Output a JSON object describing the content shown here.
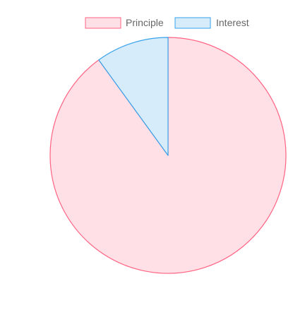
{
  "chart_data": {
    "type": "pie",
    "categories": [
      "Principle",
      "Interest"
    ],
    "values": [
      90,
      10
    ],
    "colors": {
      "Principle": {
        "fill": "#ffe0e6",
        "stroke": "#ff6384"
      },
      "Interest": {
        "fill": "#d7ecfb",
        "stroke": "#36a2eb"
      }
    },
    "legend_position": "top",
    "title": ""
  }
}
